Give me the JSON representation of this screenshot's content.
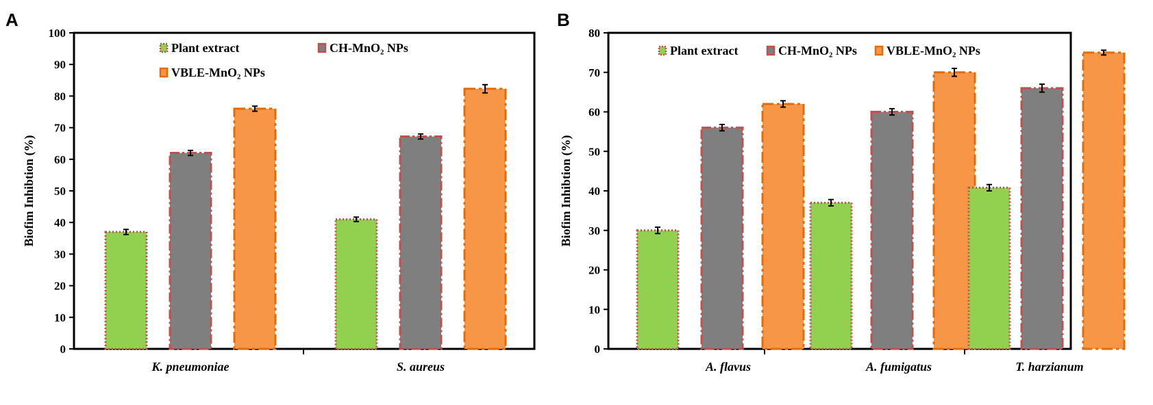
{
  "chart_data": [
    {
      "panel": "A",
      "type": "bar",
      "title": "",
      "xlabel": "",
      "ylabel": "Biofim Inhibtion (%)",
      "ylim": [
        0,
        100
      ],
      "yticks": [
        "0",
        "10",
        "20",
        "30",
        "40",
        "50",
        "60",
        "70",
        "80",
        "90",
        "100"
      ],
      "grid": false,
      "legend_placement": "top-left, two rows",
      "categories": [
        "K. pneumoniae",
        "S. aureus"
      ],
      "series": [
        {
          "name": "Plant extract",
          "values": [
            37,
            41
          ],
          "errors": [
            0.8,
            0.7
          ],
          "color": "#92d050",
          "border": "#c0504d"
        },
        {
          "name": "CH-MnO₂ NPs",
          "values": [
            62,
            67.2
          ],
          "errors": [
            0.8,
            0.8
          ],
          "color": "#7f7f7f",
          "border": "#c0504d"
        },
        {
          "name": "VBLE-MnO₂ NPs",
          "values": [
            76,
            82.3
          ],
          "errors": [
            0.8,
            1.3
          ],
          "color": "#f79646",
          "border": "#e36c09"
        }
      ]
    },
    {
      "panel": "B",
      "type": "bar",
      "title": "",
      "xlabel": "",
      "ylabel": "Biofim Inhibtion (%)",
      "ylim": [
        0,
        80
      ],
      "yticks": [
        "0",
        "10",
        "20",
        "30",
        "40",
        "50",
        "60",
        "70",
        "80"
      ],
      "grid": false,
      "legend_placement": "top, single row",
      "categories": [
        "A. flavus",
        "A. fumigatus",
        "T. harzianum"
      ],
      "series": [
        {
          "name": "Plant extract",
          "values": [
            30,
            37,
            40.8
          ],
          "errors": [
            0.8,
            0.8,
            0.8
          ],
          "color": "#92d050",
          "border": "#c0504d"
        },
        {
          "name": "CH-MnO₂ NPs",
          "values": [
            56,
            60,
            66
          ],
          "errors": [
            0.8,
            0.8,
            1.0
          ],
          "color": "#7f7f7f",
          "border": "#c0504d"
        },
        {
          "name": "VBLE-MnO₂ NPs",
          "values": [
            62,
            70,
            75
          ],
          "errors": [
            0.8,
            1.0,
            0.6
          ],
          "color": "#f79646",
          "border": "#e36c09"
        }
      ]
    }
  ]
}
